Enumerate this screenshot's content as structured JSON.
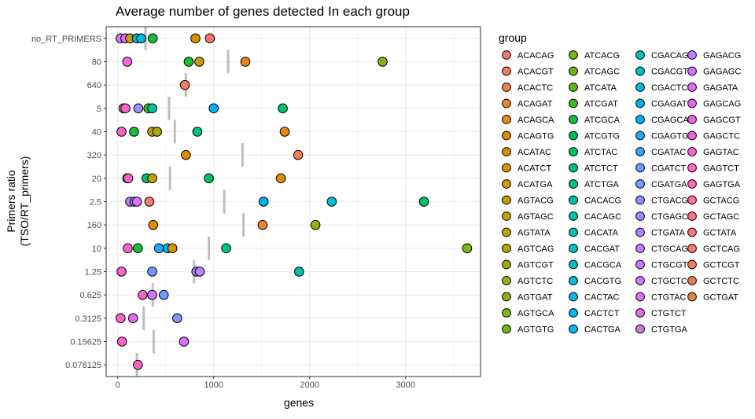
{
  "chart_data": {
    "type": "scatter",
    "title": "Average number of genes detected In each group",
    "xlabel": "genes",
    "ylabel_lines": [
      "Primers ratio",
      "(TSO/RT_primers)"
    ],
    "xlim": [
      -120,
      3780
    ],
    "xticks": [
      0,
      1000,
      2000,
      3000
    ],
    "categories": [
      "no_RT_PRIMERS",
      "80",
      "640",
      "5",
      "40",
      "320",
      "20",
      "2.5",
      "160",
      "10",
      "1.25",
      "0.625",
      "0.3125",
      "0.15625",
      "0.078125"
    ],
    "grid": true,
    "legend": {
      "title": "group",
      "position": "right",
      "columns": [
        [
          "ACACAG",
          "ACACGT",
          "ACACTC",
          "ACAGAT",
          "ACAGCA",
          "ACAGTG",
          "ACATAC",
          "ACATCT",
          "ACATGA",
          "AGTACG",
          "AGTAGC",
          "AGTATA",
          "AGTCAG",
          "AGTCGT",
          "AGTCTC",
          "AGTGAT",
          "AGTGCA",
          "AGTGTG"
        ],
        [
          "ATCACG",
          "ATCAGC",
          "ATCATA",
          "ATCGAT",
          "ATCGCA",
          "ATCGTG",
          "ATCTAC",
          "ATCTCT",
          "ATCTGA",
          "CACACG",
          "CACAGC",
          "CACATA",
          "CACGAT",
          "CACGCA",
          "CACGTG",
          "CACTAC",
          "CACTCT",
          "CACTGA"
        ],
        [
          "CGACAG",
          "CGACGT",
          "CGACTC",
          "CGAGAT",
          "CGAGCA",
          "CGAGTG",
          "CGATAC",
          "CGATCT",
          "CGATGA",
          "CTGACG",
          "CTGAGC",
          "CTGATA",
          "CTGCAG",
          "CTGCGT",
          "CTGCTC",
          "CTGTAC",
          "CTGTCT",
          "CTGTGA"
        ],
        [
          "GAGACG",
          "GAGAGC",
          "GAGATA",
          "GAGCAG",
          "GAGCGT",
          "GAGCTC",
          "GAGTAC",
          "GAGTCT",
          "GAGTGA",
          "GCTACG",
          "GCTAGC",
          "GCTATA",
          "GCTCAG",
          "GCTCGT",
          "GCTCTC",
          "GCTGAT"
        ]
      ],
      "colors": [
        [
          "#F27A70",
          "#F07D5C",
          "#EE8046",
          "#EA8431",
          "#E68817",
          "#E18C02",
          "#DC9000",
          "#D69402",
          "#CF9807",
          "#C89C0A",
          "#C0A00C",
          "#B7A40E",
          "#AEA70F",
          "#A4AB10",
          "#99AE11",
          "#8DB111",
          "#80B411",
          "#72B612"
        ],
        [
          "#83B114",
          "#72B514",
          "#5DB817",
          "#43BB24",
          "#18BD3A",
          "#00BF4F",
          "#00C163",
          "#00C275",
          "#00C386",
          "#00C496",
          "#00C4A5",
          "#00C4B3",
          "#00C3C1",
          "#00C1CE",
          "#00BFDA",
          "#00BCE5",
          "#00B9EF",
          "#00B5F8"
        ],
        [
          "#00BFC3",
          "#00BDD0",
          "#00BADD",
          "#00B5E9",
          "#00B0F3",
          "#21AAFB",
          "#3BA3FF",
          "#699CFF",
          "#7C97FF",
          "#8F91FF",
          "#A18BFF",
          "#B085FF",
          "#BD80FF",
          "#C97BFD",
          "#D475FA",
          "#DE70F5",
          "#E36CF0",
          "#CC79E6"
        ],
        [
          "#C77CFF",
          "#D274FC",
          "#DC6EF6",
          "#E566F0",
          "#EC63E5",
          "#F262D9",
          "#F764CB",
          "#FA67BD",
          "#FC6BAE",
          "#FC6F9F",
          "#FB728F",
          "#F8767F",
          "#F47970",
          "#EF7C62",
          "#EA7F55",
          "#E4824A"
        ]
      ]
    },
    "mean_marks": [
      {
        "category": "no_RT_PRIMERS",
        "x": 290
      },
      {
        "category": "80",
        "x": 1150
      },
      {
        "category": "640",
        "x": 710
      },
      {
        "category": "5",
        "x": 535
      },
      {
        "category": "40",
        "x": 595
      },
      {
        "category": "320",
        "x": 1300
      },
      {
        "category": "20",
        "x": 545
      },
      {
        "category": "2.5",
        "x": 1110
      },
      {
        "category": "160",
        "x": 1310
      },
      {
        "category": "10",
        "x": 950
      },
      {
        "category": "1.25",
        "x": 795
      },
      {
        "category": "0.625",
        "x": 365
      },
      {
        "category": "0.3125",
        "x": 270
      },
      {
        "category": "0.15625",
        "x": 375
      },
      {
        "category": "0.078125",
        "x": 200
      }
    ],
    "points": [
      {
        "category": "no_RT_PRIMERS",
        "x": 30,
        "color": "#C77CFF"
      },
      {
        "category": "no_RT_PRIMERS",
        "x": 80,
        "color": "#E76BF3"
      },
      {
        "category": "no_RT_PRIMERS",
        "x": 130,
        "color": "#C89C0A"
      },
      {
        "category": "no_RT_PRIMERS",
        "x": 200,
        "color": "#00BFC4"
      },
      {
        "category": "no_RT_PRIMERS",
        "x": 245,
        "color": "#00BCE5"
      },
      {
        "category": "no_RT_PRIMERS",
        "x": 365,
        "color": "#18BD3A"
      },
      {
        "category": "no_RT_PRIMERS",
        "x": 810,
        "color": "#DC9000"
      },
      {
        "category": "no_RT_PRIMERS",
        "x": 960,
        "color": "#F27A70"
      },
      {
        "category": "80",
        "x": 100,
        "color": "#F564E3"
      },
      {
        "category": "80",
        "x": 740,
        "color": "#18BD3A"
      },
      {
        "category": "80",
        "x": 850,
        "color": "#C89C0A"
      },
      {
        "category": "80",
        "x": 1330,
        "color": "#E68817"
      },
      {
        "category": "80",
        "x": 2760,
        "color": "#80B411"
      },
      {
        "category": "640",
        "x": 700,
        "color": "#F07D5C"
      },
      {
        "category": "5",
        "x": 60,
        "color": "#F8767D"
      },
      {
        "category": "5",
        "x": 80,
        "color": "#F764CB"
      },
      {
        "category": "5",
        "x": 215,
        "color": "#A18BFF"
      },
      {
        "category": "5",
        "x": 320,
        "color": "#43BB24"
      },
      {
        "category": "5",
        "x": 360,
        "color": "#00C4A5"
      },
      {
        "category": "5",
        "x": 1000,
        "color": "#00B0F6"
      },
      {
        "category": "5",
        "x": 1720,
        "color": "#00C163"
      },
      {
        "category": "40",
        "x": 40,
        "color": "#F764CB"
      },
      {
        "category": "40",
        "x": 170,
        "color": "#18BD3A"
      },
      {
        "category": "40",
        "x": 360,
        "color": "#C89C0A"
      },
      {
        "category": "40",
        "x": 410,
        "color": "#A4AB10"
      },
      {
        "category": "40",
        "x": 830,
        "color": "#00C386"
      },
      {
        "category": "40",
        "x": 1740,
        "color": "#E68817"
      },
      {
        "category": "320",
        "x": 710,
        "color": "#E18C02"
      },
      {
        "category": "320",
        "x": 1880,
        "color": "#F07D5C"
      },
      {
        "category": "20",
        "x": 100,
        "color": "#00BFC4"
      },
      {
        "category": "20",
        "x": 110,
        "color": "#F764CB"
      },
      {
        "category": "20",
        "x": 300,
        "color": "#00C163"
      },
      {
        "category": "20",
        "x": 360,
        "color": "#C89C0A"
      },
      {
        "category": "20",
        "x": 950,
        "color": "#00C163"
      },
      {
        "category": "20",
        "x": 1700,
        "color": "#E18C02"
      },
      {
        "category": "2.5",
        "x": 130,
        "color": "#C77CFF"
      },
      {
        "category": "2.5",
        "x": 175,
        "color": "#A18BFF"
      },
      {
        "category": "2.5",
        "x": 200,
        "color": "#D475FA"
      },
      {
        "category": "2.5",
        "x": 330,
        "color": "#F27A70"
      },
      {
        "category": "2.5",
        "x": 1520,
        "color": "#00B0F6"
      },
      {
        "category": "2.5",
        "x": 2230,
        "color": "#00C1CE"
      },
      {
        "category": "2.5",
        "x": 3190,
        "color": "#00C163"
      },
      {
        "category": "160",
        "x": 370,
        "color": "#DC9000"
      },
      {
        "category": "160",
        "x": 1510,
        "color": "#EA8431"
      },
      {
        "category": "160",
        "x": 2060,
        "color": "#99AE11"
      },
      {
        "category": "10",
        "x": 105,
        "color": "#F764CB"
      },
      {
        "category": "10",
        "x": 210,
        "color": "#18BD3A"
      },
      {
        "category": "10",
        "x": 430,
        "color": "#21AAFB"
      },
      {
        "category": "10",
        "x": 520,
        "color": "#00B5F8"
      },
      {
        "category": "10",
        "x": 570,
        "color": "#DC9000"
      },
      {
        "category": "10",
        "x": 1130,
        "color": "#00C386"
      },
      {
        "category": "10",
        "x": 3640,
        "color": "#80B411"
      },
      {
        "category": "1.25",
        "x": 40,
        "color": "#F764CB"
      },
      {
        "category": "1.25",
        "x": 360,
        "color": "#699CFF"
      },
      {
        "category": "1.25",
        "x": 820,
        "color": "#8F91FF"
      },
      {
        "category": "1.25",
        "x": 855,
        "color": "#C77CFF"
      },
      {
        "category": "1.25",
        "x": 1890,
        "color": "#00C4A5"
      },
      {
        "category": "0.625",
        "x": 260,
        "color": "#F764CB"
      },
      {
        "category": "0.625",
        "x": 360,
        "color": "#D475FA"
      },
      {
        "category": "0.625",
        "x": 480,
        "color": "#699CFF"
      },
      {
        "category": "0.3125",
        "x": 30,
        "color": "#F764CB"
      },
      {
        "category": "0.3125",
        "x": 160,
        "color": "#E566F0"
      },
      {
        "category": "0.3125",
        "x": 620,
        "color": "#7C97FF"
      },
      {
        "category": "0.15625",
        "x": 45,
        "color": "#F764CB"
      },
      {
        "category": "0.15625",
        "x": 690,
        "color": "#D475FA"
      },
      {
        "category": "0.078125",
        "x": 210,
        "color": "#F764CB"
      }
    ]
  }
}
